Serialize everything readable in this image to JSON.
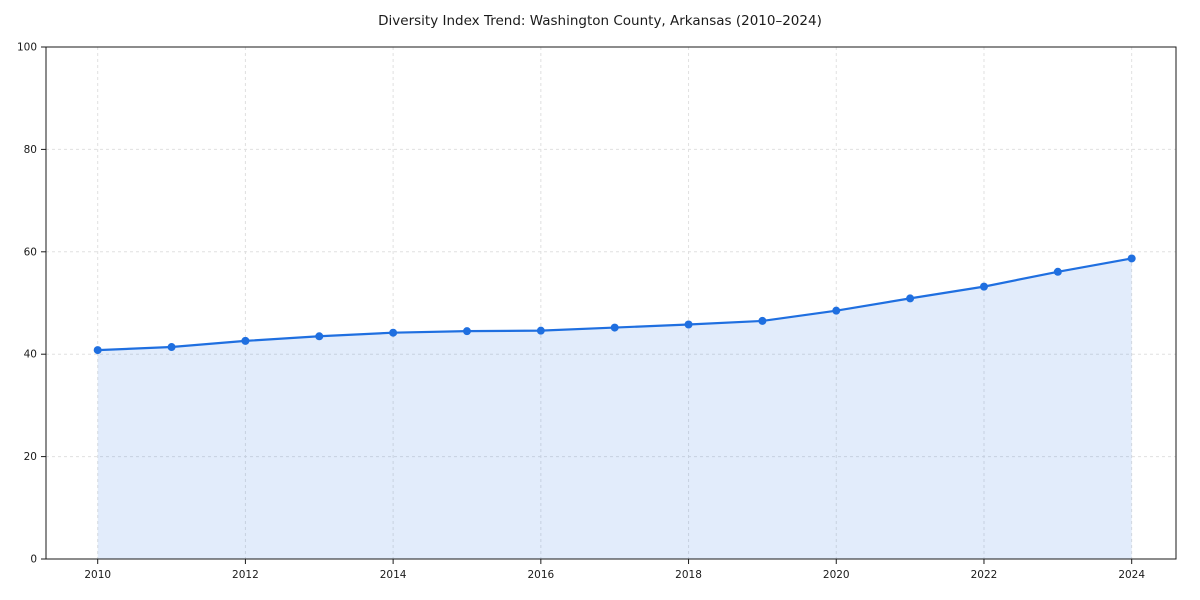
{
  "chart_data": {
    "type": "area",
    "title": "Diversity Index Trend: Washington County, Arkansas (2010–2024)",
    "x": [
      2010,
      2011,
      2012,
      2013,
      2014,
      2015,
      2016,
      2017,
      2018,
      2019,
      2020,
      2021,
      2022,
      2023,
      2024
    ],
    "values": [
      40.8,
      41.4,
      42.6,
      43.5,
      44.2,
      44.5,
      44.6,
      45.2,
      45.8,
      46.5,
      48.5,
      50.9,
      53.2,
      56.1,
      58.7
    ],
    "xlabel": "",
    "ylabel": "",
    "xlim": [
      2009.3,
      2024.6
    ],
    "ylim": [
      0,
      100
    ],
    "xticks": [
      2010,
      2012,
      2014,
      2016,
      2018,
      2020,
      2022,
      2024
    ],
    "yticks": [
      0,
      20,
      40,
      60,
      80,
      100
    ],
    "grid": true,
    "legend": "none",
    "line_color": "#1f6fe0",
    "marker_color": "#1f6fe0",
    "fill_color": "#1f6fe0",
    "fill_opacity": 0.13,
    "grid_color": "#e0e0e0",
    "axis_color": "#1a1a1a"
  }
}
